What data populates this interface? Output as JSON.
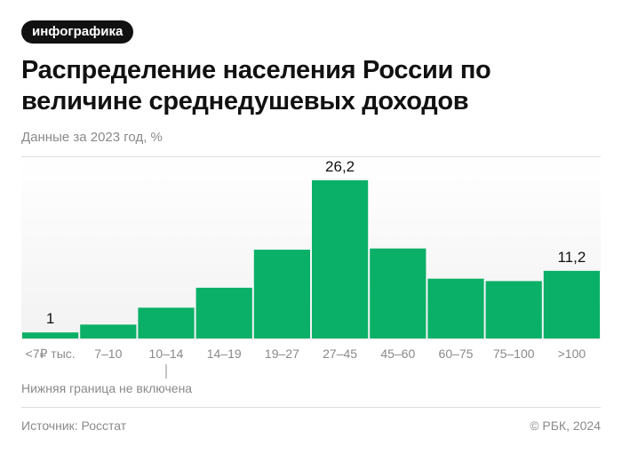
{
  "badge": "инфографика",
  "title": "Распределение населения России по величине среднедушевых доходов",
  "subtitle": "Данные за 2023 год, %",
  "chart_data": {
    "type": "bar",
    "categories": [
      "<7₽ тыс.",
      "7–10",
      "10–14",
      "14–19",
      "19–27",
      "27–45",
      "45–60",
      "60–75",
      "75–100",
      ">100"
    ],
    "values": [
      1,
      2.3,
      5.1,
      8.4,
      14.7,
      26.2,
      14.9,
      9.9,
      9.5,
      11.2
    ],
    "value_labels": [
      {
        "index": 0,
        "text": "1"
      },
      {
        "index": 5,
        "text": "26,2"
      },
      {
        "index": 9,
        "text": "11,2"
      }
    ],
    "annotation": {
      "category_index": 2,
      "text": "Нижняя граница не включена"
    },
    "ylim": [
      0,
      30
    ],
    "grid": false,
    "bar_color": "#0ab067"
  },
  "footer": {
    "source": "Источник: Росстат",
    "copyright": "© РБК, 2024"
  }
}
